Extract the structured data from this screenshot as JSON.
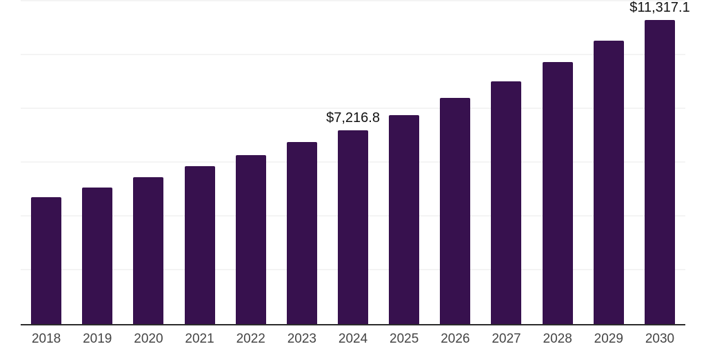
{
  "chart_data": {
    "type": "bar",
    "title": "",
    "xlabel": "",
    "ylabel": "",
    "categories": [
      "2018",
      "2019",
      "2020",
      "2021",
      "2022",
      "2023",
      "2024",
      "2025",
      "2026",
      "2027",
      "2028",
      "2029",
      "2030"
    ],
    "values": [
      4730,
      5090,
      5470,
      5860,
      6270,
      6760,
      7216.8,
      7780,
      8400,
      9020,
      9740,
      10530,
      11317.1
    ],
    "data_labels": [
      "",
      "",
      "",
      "",
      "",
      "",
      "$7,216.8",
      "",
      "",
      "",
      "",
      "",
      "$11,317.1"
    ],
    "labeled_points": [
      {
        "category": "2024",
        "label": "$7,216.8",
        "value": 7216.8
      },
      {
        "category": "2030",
        "label": "$11,317.1",
        "value": 11317.1
      }
    ],
    "ylim": [
      0,
      12000
    ],
    "gridline_interval": 2000,
    "grid": "horizontal",
    "y_tick_labels": "none",
    "legend": "none",
    "colors": {
      "bar": "#37114E",
      "axis_line": "#2b2b2b",
      "gridline": "#f4f4f4",
      "tick_label": "#444444",
      "data_label": "#111111",
      "background": "#ffffff"
    }
  }
}
